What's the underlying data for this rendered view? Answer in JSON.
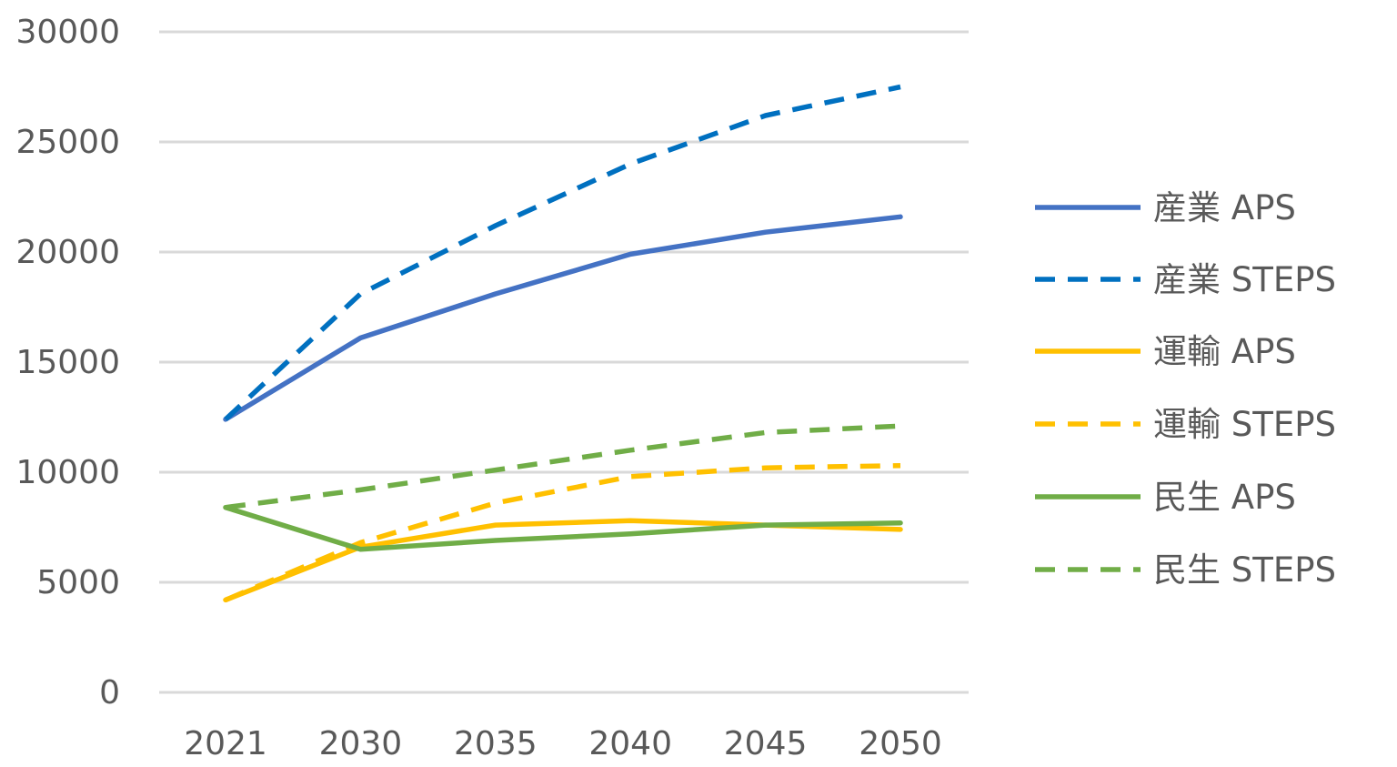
{
  "chart_data": {
    "type": "line",
    "title": "",
    "xlabel": "",
    "ylabel": "",
    "categories": [
      "2021",
      "2030",
      "2035",
      "2040",
      "2045",
      "2050"
    ],
    "ylim": [
      0,
      30000
    ],
    "yticks": [
      "0",
      "5000",
      "10000",
      "15000",
      "20000",
      "25000",
      "30000"
    ],
    "grid": true,
    "legend_position": "right",
    "series": [
      {
        "name": "産業 APS",
        "color": "#4472C4",
        "dashed": false,
        "values": [
          12400,
          16100,
          18100,
          19900,
          20900,
          21600
        ]
      },
      {
        "name": "産業 STEPS",
        "color": "#0070C0",
        "dashed": true,
        "values": [
          12400,
          18100,
          21200,
          24000,
          26200,
          27500
        ]
      },
      {
        "name": "運輸 APS",
        "color": "#FFC000",
        "dashed": false,
        "values": [
          4200,
          6600,
          7600,
          7800,
          7600,
          7400
        ]
      },
      {
        "name": "運輸 STEPS",
        "color": "#FFC000",
        "dashed": true,
        "values": [
          4200,
          6800,
          8600,
          9800,
          10200,
          10300
        ]
      },
      {
        "name": "民生 APS",
        "color": "#70AD47",
        "dashed": false,
        "values": [
          8400,
          6500,
          6900,
          7200,
          7600,
          7700
        ]
      },
      {
        "name": "民生 STEPS",
        "color": "#70AD47",
        "dashed": true,
        "values": [
          8400,
          9200,
          10100,
          11000,
          11800,
          12100
        ]
      }
    ]
  }
}
